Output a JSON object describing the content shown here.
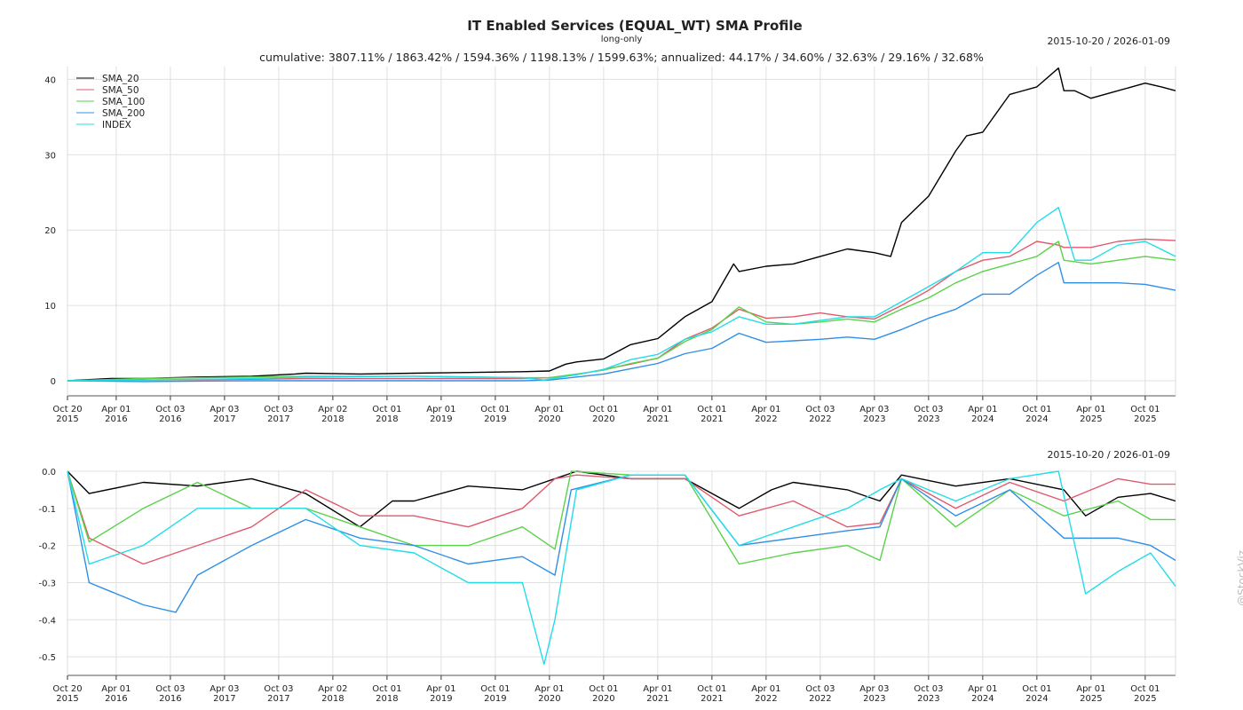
{
  "title": "IT Enabled Services (EQUAL_WT) SMA Profile",
  "subtitle": "long-only",
  "stats": "cumulative: 3807.11% / 1863.42% / 1594.36% / 1198.13% / 1599.63%; annualized: 44.17% / 34.60% / 32.63% / 29.16% / 32.68%",
  "date_range": "2015-10-20 / 2026-01-09",
  "watermark": "@StockViz",
  "chart_data": [
    {
      "type": "line",
      "name": "cumulative-returns",
      "title": "IT Enabled Services (EQUAL_WT) SMA Profile",
      "xlabel": "",
      "ylabel": "",
      "xlim": [
        2015.8,
        2026.03
      ],
      "ylim": [
        -2,
        41.7
      ],
      "grid": true,
      "legend": "top-left",
      "yticks": [
        0,
        10,
        20,
        30,
        40
      ],
      "ytick_labels": [
        "0",
        "10",
        "20",
        "30",
        "40"
      ],
      "xticks": [
        2015.8,
        2016.25,
        2016.75,
        2017.25,
        2017.75,
        2018.25,
        2018.75,
        2019.25,
        2019.75,
        2020.25,
        2020.75,
        2021.25,
        2021.75,
        2022.25,
        2022.75,
        2023.25,
        2023.75,
        2024.25,
        2024.75,
        2025.25,
        2025.75
      ],
      "xtick_labels": [
        [
          "Oct 20",
          "2015"
        ],
        [
          "Apr 01",
          "2016"
        ],
        [
          "Oct 03",
          "2016"
        ],
        [
          "Apr 03",
          "2017"
        ],
        [
          "Oct 03",
          "2017"
        ],
        [
          "Apr 02",
          "2018"
        ],
        [
          "Oct 01",
          "2018"
        ],
        [
          "Apr 01",
          "2019"
        ],
        [
          "Oct 01",
          "2019"
        ],
        [
          "Apr 01",
          "2020"
        ],
        [
          "Oct 01",
          "2020"
        ],
        [
          "Apr 01",
          "2021"
        ],
        [
          "Oct 01",
          "2021"
        ],
        [
          "Apr 01",
          "2022"
        ],
        [
          "Oct 03",
          "2022"
        ],
        [
          "Apr 03",
          "2023"
        ],
        [
          "Oct 03",
          "2023"
        ],
        [
          "Apr 01",
          "2024"
        ],
        [
          "Oct 01",
          "2024"
        ],
        [
          "Apr 01",
          "2025"
        ],
        [
          "Oct 01",
          "2025"
        ]
      ],
      "series": [
        {
          "name": "SMA_20",
          "color": "#000000",
          "x": [
            2015.8,
            2016.2,
            2016.5,
            2017.0,
            2017.5,
            2017.9,
            2018.0,
            2018.5,
            2019.0,
            2019.5,
            2020.0,
            2020.25,
            2020.4,
            2020.5,
            2020.75,
            2021.0,
            2021.25,
            2021.5,
            2021.75,
            2021.95,
            2022.0,
            2022.25,
            2022.5,
            2022.75,
            2023.0,
            2023.25,
            2023.4,
            2023.5,
            2023.75,
            2024.0,
            2024.1,
            2024.25,
            2024.5,
            2024.75,
            2024.95,
            2025.0,
            2025.1,
            2025.25,
            2025.5,
            2025.75,
            2025.9,
            2026.03
          ],
          "y": [
            0,
            0.3,
            0.3,
            0.5,
            0.6,
            0.9,
            1.0,
            0.9,
            1.0,
            1.1,
            1.2,
            1.3,
            2.2,
            2.5,
            2.9,
            4.8,
            5.6,
            8.5,
            10.5,
            15.5,
            14.5,
            15.2,
            15.5,
            16.5,
            17.5,
            17.0,
            16.5,
            21,
            24.5,
            30.5,
            32.5,
            33,
            38,
            39,
            41.5,
            38.5,
            38.5,
            37.5,
            38.5,
            39.5,
            39,
            38.5
          ]
        },
        {
          "name": "SMA_50",
          "color": "#e05a6e",
          "x": [
            2015.8,
            2016.5,
            2017.5,
            2018.0,
            2019.0,
            2020.0,
            2020.25,
            2020.5,
            2020.75,
            2021.0,
            2021.25,
            2021.5,
            2021.75,
            2022.0,
            2022.25,
            2022.5,
            2022.75,
            2023.0,
            2023.25,
            2023.5,
            2023.75,
            2024.0,
            2024.25,
            2024.5,
            2024.75,
            2024.95,
            2025.0,
            2025.25,
            2025.5,
            2025.75,
            2026.03
          ],
          "y": [
            0,
            0.1,
            0.2,
            0.3,
            0.3,
            0.3,
            0.4,
            0.8,
            1.5,
            2.2,
            3.0,
            5.5,
            7,
            9.5,
            8.3,
            8.5,
            9,
            8.5,
            8.2,
            10,
            12,
            14.5,
            16,
            16.5,
            18.5,
            18,
            17.7,
            17.7,
            18.5,
            18.8,
            18.6
          ]
        },
        {
          "name": "SMA_100",
          "color": "#5ad24a",
          "x": [
            2015.8,
            2016.5,
            2017.5,
            2018.0,
            2019.0,
            2020.0,
            2020.25,
            2020.5,
            2020.75,
            2021.0,
            2021.25,
            2021.5,
            2021.75,
            2022.0,
            2022.25,
            2022.5,
            2022.75,
            2023.0,
            2023.25,
            2023.5,
            2023.75,
            2024.0,
            2024.25,
            2024.5,
            2024.75,
            2024.95,
            2025.0,
            2025.25,
            2025.5,
            2025.75,
            2026.03
          ],
          "y": [
            0,
            0.3,
            0.5,
            0.6,
            0.6,
            0.4,
            0.4,
            0.9,
            1.4,
            2.3,
            3.0,
            5.2,
            6.8,
            9.8,
            7.8,
            7.5,
            7.8,
            8.2,
            7.8,
            9.5,
            11,
            13,
            14.5,
            15.5,
            16.5,
            18.5,
            16,
            15.5,
            16,
            16.5,
            16
          ]
        },
        {
          "name": "SMA_200",
          "color": "#2f8fe6",
          "x": [
            2015.8,
            2016.5,
            2017.5,
            2018.0,
            2019.0,
            2020.0,
            2020.25,
            2020.5,
            2020.75,
            2021.0,
            2021.25,
            2021.5,
            2021.75,
            2022.0,
            2022.25,
            2022.5,
            2022.75,
            2023.0,
            2023.25,
            2023.5,
            2023.75,
            2024.0,
            2024.25,
            2024.5,
            2024.75,
            2024.95,
            2025.0,
            2025.25,
            2025.5,
            2025.75,
            2026.03
          ],
          "y": [
            0,
            -0.1,
            0,
            0,
            0,
            0,
            0.1,
            0.5,
            0.9,
            1.6,
            2.3,
            3.6,
            4.3,
            6.3,
            5.1,
            5.3,
            5.5,
            5.8,
            5.5,
            6.8,
            8.3,
            9.5,
            11.5,
            11.5,
            14,
            15.7,
            13,
            13,
            13,
            12.8,
            12
          ]
        },
        {
          "name": "INDEX",
          "color": "#22dde8",
          "x": [
            2015.8,
            2016.5,
            2017.5,
            2018.0,
            2019.0,
            2020.0,
            2020.2,
            2020.5,
            2020.75,
            2021.0,
            2021.25,
            2021.5,
            2021.75,
            2022.0,
            2022.25,
            2022.5,
            2022.75,
            2023.0,
            2023.25,
            2023.5,
            2023.75,
            2024.0,
            2024.25,
            2024.5,
            2024.75,
            2024.95,
            2025.1,
            2025.25,
            2025.5,
            2025.75,
            2026.03
          ],
          "y": [
            0,
            0.1,
            0.3,
            0.5,
            0.6,
            0.4,
            0.1,
            0.8,
            1.5,
            2.8,
            3.5,
            5.5,
            6.5,
            8.5,
            7.5,
            7.5,
            8,
            8.5,
            8.5,
            10.5,
            12.5,
            14.5,
            17,
            17,
            21,
            23,
            16,
            16,
            18,
            18.5,
            16.5
          ]
        }
      ]
    },
    {
      "type": "line",
      "name": "drawdowns",
      "title": "",
      "xlabel": "",
      "ylabel": "",
      "xlim": [
        2015.8,
        2026.03
      ],
      "ylim": [
        -0.55,
        0.0
      ],
      "grid": true,
      "legend": "none",
      "yticks": [
        0,
        -0.1,
        -0.2,
        -0.3,
        -0.4,
        -0.5
      ],
      "ytick_labels": [
        "0.0",
        "-0.1",
        "-0.2",
        "-0.3",
        "-0.4",
        "-0.5"
      ],
      "series": [
        {
          "name": "SMA_20",
          "color": "#000000",
          "x": [
            2015.8,
            2016.0,
            2016.5,
            2017.0,
            2017.5,
            2018.0,
            2018.5,
            2018.8,
            2019.0,
            2019.5,
            2020.0,
            2020.5,
            2021.0,
            2021.5,
            2022.0,
            2022.3,
            2022.5,
            2023.0,
            2023.3,
            2023.5,
            2024.0,
            2024.5,
            2025.0,
            2025.2,
            2025.5,
            2025.8,
            2026.03
          ],
          "y": [
            0,
            -0.06,
            -0.03,
            -0.04,
            -0.02,
            -0.06,
            -0.15,
            -0.08,
            -0.08,
            -0.04,
            -0.05,
            0,
            -0.02,
            -0.02,
            -0.1,
            -0.05,
            -0.03,
            -0.05,
            -0.08,
            -0.01,
            -0.04,
            -0.02,
            -0.05,
            -0.12,
            -0.07,
            -0.06,
            -0.08
          ]
        },
        {
          "name": "SMA_50",
          "color": "#e05a6e",
          "x": [
            2015.8,
            2016.0,
            2016.5,
            2017.0,
            2017.5,
            2018.0,
            2018.5,
            2019.0,
            2019.5,
            2020.0,
            2020.3,
            2020.5,
            2021.0,
            2021.5,
            2022.0,
            2022.5,
            2023.0,
            2023.3,
            2023.5,
            2024.0,
            2024.5,
            2025.0,
            2025.5,
            2025.8,
            2026.03
          ],
          "y": [
            0,
            -0.18,
            -0.25,
            -0.2,
            -0.15,
            -0.05,
            -0.12,
            -0.12,
            -0.15,
            -0.1,
            -0.02,
            -0.01,
            -0.02,
            -0.02,
            -0.12,
            -0.08,
            -0.15,
            -0.14,
            -0.02,
            -0.1,
            -0.03,
            -0.08,
            -0.02,
            -0.035,
            -0.035
          ]
        },
        {
          "name": "SMA_100",
          "color": "#5ad24a",
          "x": [
            2015.8,
            2016.0,
            2016.5,
            2017.0,
            2017.5,
            2018.0,
            2018.5,
            2019.0,
            2019.5,
            2020.0,
            2020.3,
            2020.45,
            2021.0,
            2021.5,
            2022.0,
            2022.5,
            2023.0,
            2023.3,
            2023.5,
            2024.0,
            2024.5,
            2025.0,
            2025.5,
            2025.8,
            2026.03
          ],
          "y": [
            0,
            -0.19,
            -0.1,
            -0.03,
            -0.1,
            -0.1,
            -0.15,
            -0.2,
            -0.2,
            -0.15,
            -0.21,
            0,
            -0.01,
            -0.01,
            -0.25,
            -0.22,
            -0.2,
            -0.24,
            -0.02,
            -0.15,
            -0.05,
            -0.12,
            -0.08,
            -0.13,
            -0.13
          ]
        },
        {
          "name": "SMA_200",
          "color": "#2f8fe6",
          "x": [
            2015.8,
            2016.0,
            2016.5,
            2016.8,
            2017.0,
            2017.5,
            2018.0,
            2018.5,
            2019.0,
            2019.5,
            2020.0,
            2020.3,
            2020.45,
            2021.0,
            2021.5,
            2022.0,
            2022.5,
            2023.0,
            2023.3,
            2023.5,
            2024.0,
            2024.5,
            2025.0,
            2025.5,
            2025.8,
            2026.03
          ],
          "y": [
            0,
            -0.3,
            -0.36,
            -0.38,
            -0.28,
            -0.2,
            -0.13,
            -0.18,
            -0.2,
            -0.25,
            -0.23,
            -0.28,
            -0.05,
            -0.01,
            -0.01,
            -0.2,
            -0.18,
            -0.16,
            -0.15,
            -0.02,
            -0.12,
            -0.05,
            -0.18,
            -0.18,
            -0.2,
            -0.24
          ]
        },
        {
          "name": "INDEX",
          "color": "#22dde8",
          "x": [
            2015.8,
            2016.0,
            2016.5,
            2017.0,
            2017.5,
            2018.0,
            2018.5,
            2019.0,
            2019.5,
            2020.0,
            2020.2,
            2020.3,
            2020.5,
            2021.0,
            2021.5,
            2022.0,
            2022.5,
            2023.0,
            2023.3,
            2023.5,
            2024.0,
            2024.5,
            2024.95,
            2025.2,
            2025.5,
            2025.8,
            2026.03
          ],
          "y": [
            0,
            -0.25,
            -0.2,
            -0.1,
            -0.1,
            -0.1,
            -0.2,
            -0.22,
            -0.3,
            -0.3,
            -0.52,
            -0.4,
            -0.05,
            -0.01,
            -0.01,
            -0.2,
            -0.15,
            -0.1,
            -0.05,
            -0.02,
            -0.08,
            -0.02,
            0,
            -0.33,
            -0.27,
            -0.22,
            -0.31
          ]
        }
      ]
    }
  ]
}
